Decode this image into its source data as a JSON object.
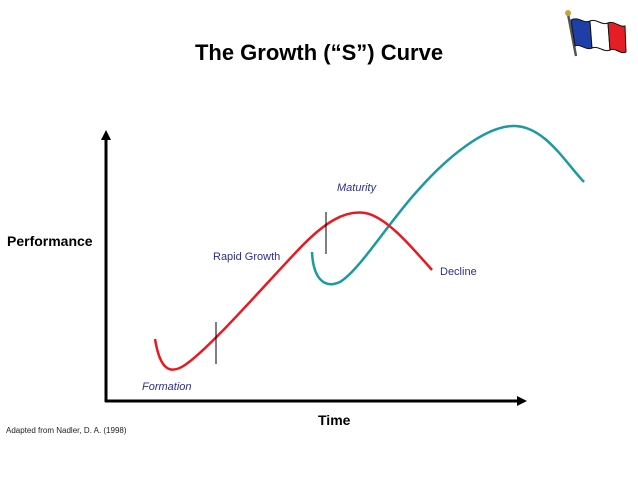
{
  "title": "The Growth (“S”) Curve",
  "y_axis_label": "Performance",
  "x_axis_label": "Time",
  "phases": {
    "formation": "Formation",
    "rapid_growth": "Rapid Growth",
    "maturity": "Maturity",
    "decline": "Decline"
  },
  "source": "Adapted from Nadler, D. A. (1998)",
  "colors": {
    "first_curve": "#e8191f",
    "second_curve": "#1b9aa2",
    "phase_labels": "#2b2f8e"
  },
  "icons": [
    "flag-icon"
  ]
}
